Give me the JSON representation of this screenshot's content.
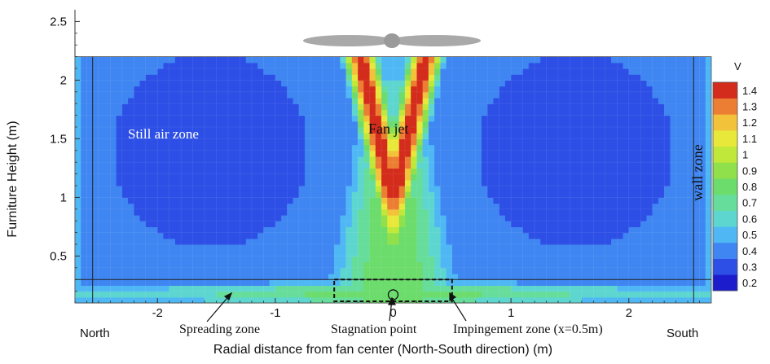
{
  "chart_data": {
    "type": "heatmap",
    "title": "",
    "xlabel": "Radial distance from fan center (North-South direction) (m)",
    "ylabel": "Furniture Height (m)",
    "xlim": [
      -2.7,
      2.7
    ],
    "ylim": [
      0.1,
      2.6
    ],
    "x_ticks": [
      -2,
      -1,
      0,
      1,
      2
    ],
    "x_tick_labels": [
      "-2",
      "-1",
      "0",
      "1",
      "2"
    ],
    "y_ticks": [
      0.5,
      1,
      1.5,
      2,
      2.5
    ],
    "y_tick_labels": [
      "0.5",
      "1",
      "1.5",
      "2",
      "2.5"
    ],
    "domain": {
      "x": [
        -2.7,
        2.7
      ],
      "y": [
        0.1,
        2.2
      ]
    },
    "colorbar": {
      "title": "V",
      "levels": [
        0.2,
        0.3,
        0.4,
        0.5,
        0.6,
        0.7,
        0.8,
        0.9,
        1,
        1.1,
        1.2,
        1.3,
        1.4
      ],
      "labels": [
        "0.2",
        "0.3",
        "0.4",
        "0.5",
        "0.6",
        "0.7",
        "0.8",
        "0.9",
        "1",
        "1.1",
        "1.2",
        "1.3",
        "1.4"
      ],
      "colors": [
        "#1c1ccc",
        "#2d4fe6",
        "#3f86f2",
        "#4fb8f4",
        "#5ed6d0",
        "#66dd9a",
        "#6cdc6c",
        "#8fe04a",
        "#bfe83a",
        "#e8e83a",
        "#f2c23a",
        "#ec7e33",
        "#d42c1c"
      ]
    },
    "annotations": {
      "still_air": "Still air zone",
      "fan_jet": "Fan jet",
      "wall_zone": "wall zone",
      "spreading": "Spreading zone",
      "stagnation": "Stagnation point",
      "impingement": "Impingement zone (x=0.5m)",
      "north": "North",
      "south": "South"
    },
    "reference_lines": {
      "floor_layer_height": 0.3,
      "wall_lines_x": [
        -2.55,
        2.55
      ],
      "impingement_box_x": [
        -0.5,
        0.5
      ]
    }
  }
}
